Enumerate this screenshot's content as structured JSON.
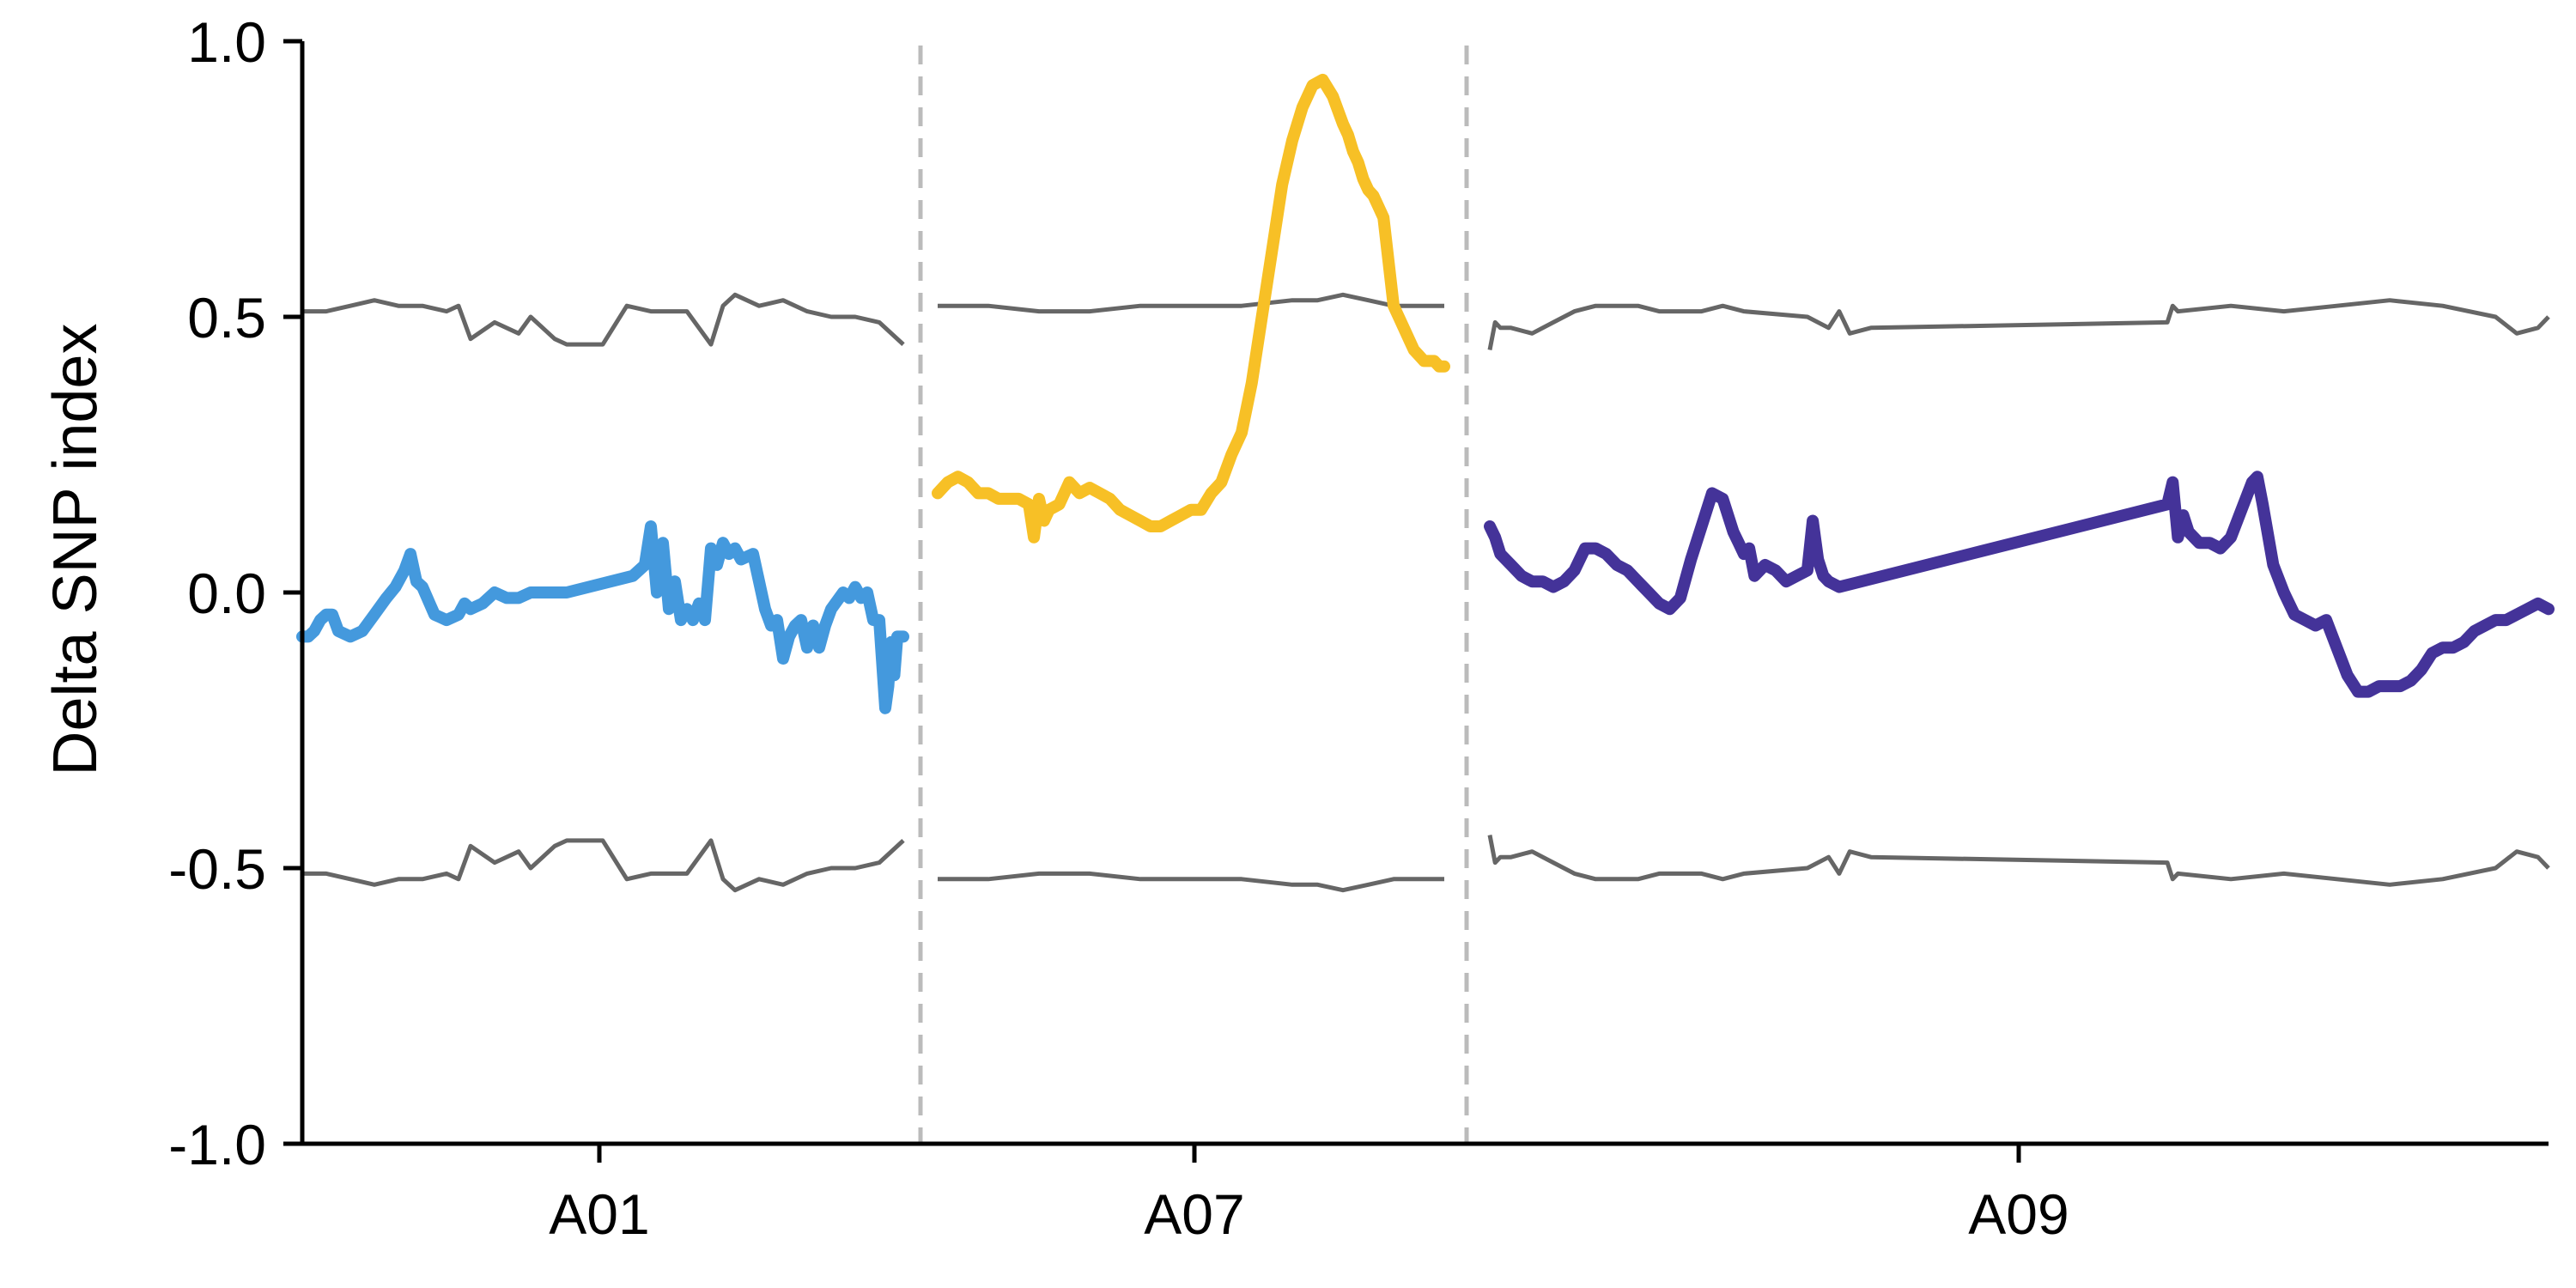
{
  "chart_data": {
    "type": "line",
    "title": "",
    "xlabel": "",
    "ylabel": "Delta SNP index",
    "ylim": [
      -1.0,
      1.0
    ],
    "yticks": [
      "-1.0",
      "-0.5",
      "0.0",
      "0.5",
      "1.0"
    ],
    "ytick_values": [
      -1.0,
      -0.5,
      0.0,
      0.5,
      1.0
    ],
    "grid": false,
    "legend": "none",
    "threshold_color": "#666666",
    "separator_color": "#bbbbbb",
    "chromosomes": [
      {
        "label": "A01",
        "color": "#4499dd",
        "x": [
          0.0,
          0.01,
          0.02,
          0.03,
          0.04,
          0.05,
          0.06,
          0.08,
          0.1,
          0.12,
          0.14,
          0.155,
          0.17,
          0.18,
          0.19,
          0.2,
          0.22,
          0.24,
          0.26,
          0.27,
          0.28,
          0.3,
          0.32,
          0.34,
          0.36,
          0.38,
          0.44,
          0.55,
          0.57,
          0.58,
          0.59,
          0.6,
          0.61,
          0.62,
          0.63,
          0.64,
          0.65,
          0.66,
          0.67,
          0.68,
          0.69,
          0.7,
          0.71,
          0.72,
          0.73,
          0.75,
          0.77,
          0.78,
          0.79,
          0.8,
          0.81,
          0.82,
          0.83,
          0.84,
          0.85,
          0.86,
          0.87,
          0.88,
          0.9,
          0.91,
          0.92,
          0.93,
          0.94,
          0.95,
          0.96,
          0.97,
          0.975,
          0.98,
          0.985,
          0.99,
          1.0
        ],
        "y": [
          -0.08,
          -0.08,
          -0.07,
          -0.05,
          -0.04,
          -0.04,
          -0.07,
          -0.08,
          -0.07,
          -0.04,
          -0.01,
          0.01,
          0.04,
          0.07,
          0.02,
          0.01,
          -0.04,
          -0.05,
          -0.04,
          -0.02,
          -0.03,
          -0.02,
          0.0,
          -0.01,
          -0.01,
          0.0,
          0.0,
          0.03,
          0.05,
          0.12,
          0.0,
          0.09,
          -0.03,
          0.02,
          -0.05,
          -0.03,
          -0.05,
          -0.02,
          -0.05,
          0.08,
          0.05,
          0.09,
          0.07,
          0.08,
          0.06,
          0.07,
          -0.03,
          -0.06,
          -0.05,
          -0.12,
          -0.08,
          -0.06,
          -0.05,
          -0.1,
          -0.06,
          -0.1,
          -0.06,
          -0.03,
          0.0,
          -0.01,
          0.01,
          -0.01,
          0.0,
          -0.05,
          -0.05,
          -0.21,
          -0.17,
          -0.09,
          -0.15,
          -0.08,
          -0.08
        ]
      },
      {
        "label": "A07",
        "color": "#f7c026",
        "x": [
          0.0,
          0.02,
          0.04,
          0.06,
          0.08,
          0.1,
          0.12,
          0.14,
          0.16,
          0.18,
          0.19,
          0.2,
          0.21,
          0.22,
          0.24,
          0.26,
          0.28,
          0.3,
          0.32,
          0.34,
          0.36,
          0.38,
          0.4,
          0.42,
          0.44,
          0.46,
          0.48,
          0.5,
          0.52,
          0.54,
          0.56,
          0.58,
          0.6,
          0.62,
          0.64,
          0.66,
          0.68,
          0.7,
          0.72,
          0.74,
          0.76,
          0.78,
          0.8,
          0.81,
          0.82,
          0.83,
          0.84,
          0.85,
          0.86,
          0.87,
          0.88,
          0.89,
          0.9,
          0.91,
          0.92,
          0.93,
          0.94,
          0.95,
          0.96,
          0.97,
          0.98,
          0.99,
          1.0
        ],
        "y": [
          0.18,
          0.2,
          0.21,
          0.2,
          0.18,
          0.18,
          0.17,
          0.17,
          0.17,
          0.16,
          0.1,
          0.17,
          0.13,
          0.15,
          0.16,
          0.2,
          0.18,
          0.19,
          0.18,
          0.17,
          0.15,
          0.14,
          0.13,
          0.12,
          0.12,
          0.13,
          0.14,
          0.15,
          0.15,
          0.18,
          0.2,
          0.25,
          0.29,
          0.38,
          0.5,
          0.62,
          0.74,
          0.82,
          0.88,
          0.92,
          0.93,
          0.9,
          0.85,
          0.83,
          0.8,
          0.78,
          0.75,
          0.73,
          0.72,
          0.7,
          0.68,
          0.6,
          0.52,
          0.5,
          0.48,
          0.46,
          0.44,
          0.43,
          0.42,
          0.42,
          0.42,
          0.41,
          0.41
        ]
      },
      {
        "label": "A09",
        "color": "#443399",
        "x": [
          0.0,
          0.005,
          0.01,
          0.02,
          0.03,
          0.04,
          0.05,
          0.06,
          0.07,
          0.08,
          0.09,
          0.1,
          0.11,
          0.12,
          0.13,
          0.14,
          0.15,
          0.16,
          0.17,
          0.18,
          0.19,
          0.2,
          0.21,
          0.22,
          0.23,
          0.235,
          0.24,
          0.245,
          0.25,
          0.26,
          0.27,
          0.28,
          0.29,
          0.3,
          0.305,
          0.31,
          0.315,
          0.32,
          0.33,
          0.64,
          0.645,
          0.65,
          0.655,
          0.66,
          0.67,
          0.68,
          0.69,
          0.7,
          0.71,
          0.72,
          0.725,
          0.73,
          0.74,
          0.75,
          0.76,
          0.77,
          0.78,
          0.79,
          0.8,
          0.81,
          0.82,
          0.83,
          0.84,
          0.85,
          0.86,
          0.87,
          0.88,
          0.89,
          0.9,
          0.91,
          0.92,
          0.93,
          0.94,
          0.95,
          0.96,
          0.97,
          0.98,
          0.99,
          1.0
        ],
        "y": [
          0.12,
          0.1,
          0.07,
          0.05,
          0.03,
          0.02,
          0.02,
          0.01,
          0.02,
          0.04,
          0.08,
          0.08,
          0.07,
          0.05,
          0.04,
          0.02,
          0.0,
          -0.02,
          -0.03,
          -0.01,
          0.06,
          0.12,
          0.18,
          0.17,
          0.11,
          0.09,
          0.07,
          0.08,
          0.03,
          0.05,
          0.04,
          0.02,
          0.03,
          0.04,
          0.13,
          0.06,
          0.03,
          0.02,
          0.01,
          0.16,
          0.2,
          0.1,
          0.14,
          0.11,
          0.09,
          0.09,
          0.08,
          0.1,
          0.15,
          0.2,
          0.21,
          0.16,
          0.05,
          0.0,
          -0.04,
          -0.05,
          -0.06,
          -0.05,
          -0.1,
          -0.15,
          -0.18,
          -0.18,
          -0.17,
          -0.17,
          -0.17,
          -0.16,
          -0.14,
          -0.11,
          -0.1,
          -0.1,
          -0.09,
          -0.07,
          -0.06,
          -0.05,
          -0.05,
          -0.04,
          -0.03,
          -0.02,
          -0.03
        ]
      }
    ],
    "upper_threshold": [
      {
        "x": [
          0.0,
          0.04,
          0.08,
          0.12,
          0.16,
          0.2,
          0.24,
          0.26,
          0.28,
          0.32,
          0.36,
          0.38,
          0.42,
          0.44,
          0.5,
          0.54,
          0.58,
          0.6,
          0.64,
          0.68,
          0.7,
          0.71,
          0.72,
          0.76,
          0.8,
          0.84,
          0.88,
          0.92,
          0.96,
          1.0
        ],
        "y": [
          0.51,
          0.51,
          0.52,
          0.53,
          0.52,
          0.52,
          0.51,
          0.52,
          0.46,
          0.49,
          0.47,
          0.5,
          0.46,
          0.45,
          0.45,
          0.52,
          0.51,
          0.51,
          0.51,
          0.45,
          0.52,
          0.53,
          0.54,
          0.52,
          0.53,
          0.51,
          0.5,
          0.5,
          0.49,
          0.45
        ]
      },
      {
        "x": [
          0.0,
          0.1,
          0.2,
          0.3,
          0.4,
          0.5,
          0.6,
          0.7,
          0.75,
          0.8,
          0.85,
          0.9,
          1.0
        ],
        "y": [
          0.52,
          0.52,
          0.51,
          0.51,
          0.52,
          0.52,
          0.52,
          0.53,
          0.53,
          0.54,
          0.53,
          0.52,
          0.52
        ]
      },
      {
        "x": [
          0.0,
          0.005,
          0.01,
          0.02,
          0.04,
          0.06,
          0.08,
          0.1,
          0.12,
          0.14,
          0.16,
          0.2,
          0.22,
          0.24,
          0.3,
          0.32,
          0.33,
          0.34,
          0.36,
          0.64,
          0.645,
          0.65,
          0.7,
          0.75,
          0.8,
          0.85,
          0.9,
          0.95,
          0.97,
          0.99,
          1.0
        ],
        "y": [
          0.44,
          0.49,
          0.48,
          0.48,
          0.47,
          0.49,
          0.51,
          0.52,
          0.52,
          0.52,
          0.51,
          0.51,
          0.52,
          0.51,
          0.5,
          0.48,
          0.51,
          0.47,
          0.48,
          0.49,
          0.52,
          0.51,
          0.52,
          0.51,
          0.52,
          0.53,
          0.52,
          0.5,
          0.47,
          0.48,
          0.5
        ]
      }
    ],
    "lower_threshold": [
      {
        "x": [
          0.0,
          0.04,
          0.08,
          0.12,
          0.16,
          0.2,
          0.24,
          0.26,
          0.28,
          0.32,
          0.36,
          0.38,
          0.42,
          0.44,
          0.5,
          0.54,
          0.58,
          0.6,
          0.64,
          0.68,
          0.7,
          0.71,
          0.72,
          0.76,
          0.8,
          0.84,
          0.88,
          0.92,
          0.96,
          1.0
        ],
        "y": [
          -0.51,
          -0.51,
          -0.52,
          -0.53,
          -0.52,
          -0.52,
          -0.51,
          -0.52,
          -0.46,
          -0.49,
          -0.47,
          -0.5,
          -0.46,
          -0.45,
          -0.45,
          -0.52,
          -0.51,
          -0.51,
          -0.51,
          -0.45,
          -0.52,
          -0.53,
          -0.54,
          -0.52,
          -0.53,
          -0.51,
          -0.5,
          -0.5,
          -0.49,
          -0.45
        ]
      },
      {
        "x": [
          0.0,
          0.1,
          0.2,
          0.3,
          0.4,
          0.5,
          0.6,
          0.7,
          0.75,
          0.8,
          0.85,
          0.9,
          1.0
        ],
        "y": [
          -0.52,
          -0.52,
          -0.51,
          -0.51,
          -0.52,
          -0.52,
          -0.52,
          -0.53,
          -0.53,
          -0.54,
          -0.53,
          -0.52,
          -0.52
        ]
      },
      {
        "x": [
          0.0,
          0.005,
          0.01,
          0.02,
          0.04,
          0.06,
          0.08,
          0.1,
          0.12,
          0.14,
          0.16,
          0.2,
          0.22,
          0.24,
          0.3,
          0.32,
          0.33,
          0.34,
          0.36,
          0.64,
          0.645,
          0.65,
          0.7,
          0.75,
          0.8,
          0.85,
          0.9,
          0.95,
          0.97,
          0.99,
          1.0
        ],
        "y": [
          -0.44,
          -0.49,
          -0.48,
          -0.48,
          -0.47,
          -0.49,
          -0.51,
          -0.52,
          -0.52,
          -0.52,
          -0.51,
          -0.51,
          -0.52,
          -0.51,
          -0.5,
          -0.48,
          -0.51,
          -0.47,
          -0.48,
          -0.49,
          -0.52,
          -0.51,
          -0.52,
          -0.51,
          -0.52,
          -0.53,
          -0.52,
          -0.5,
          -0.47,
          -0.48,
          -0.5
        ]
      }
    ]
  }
}
